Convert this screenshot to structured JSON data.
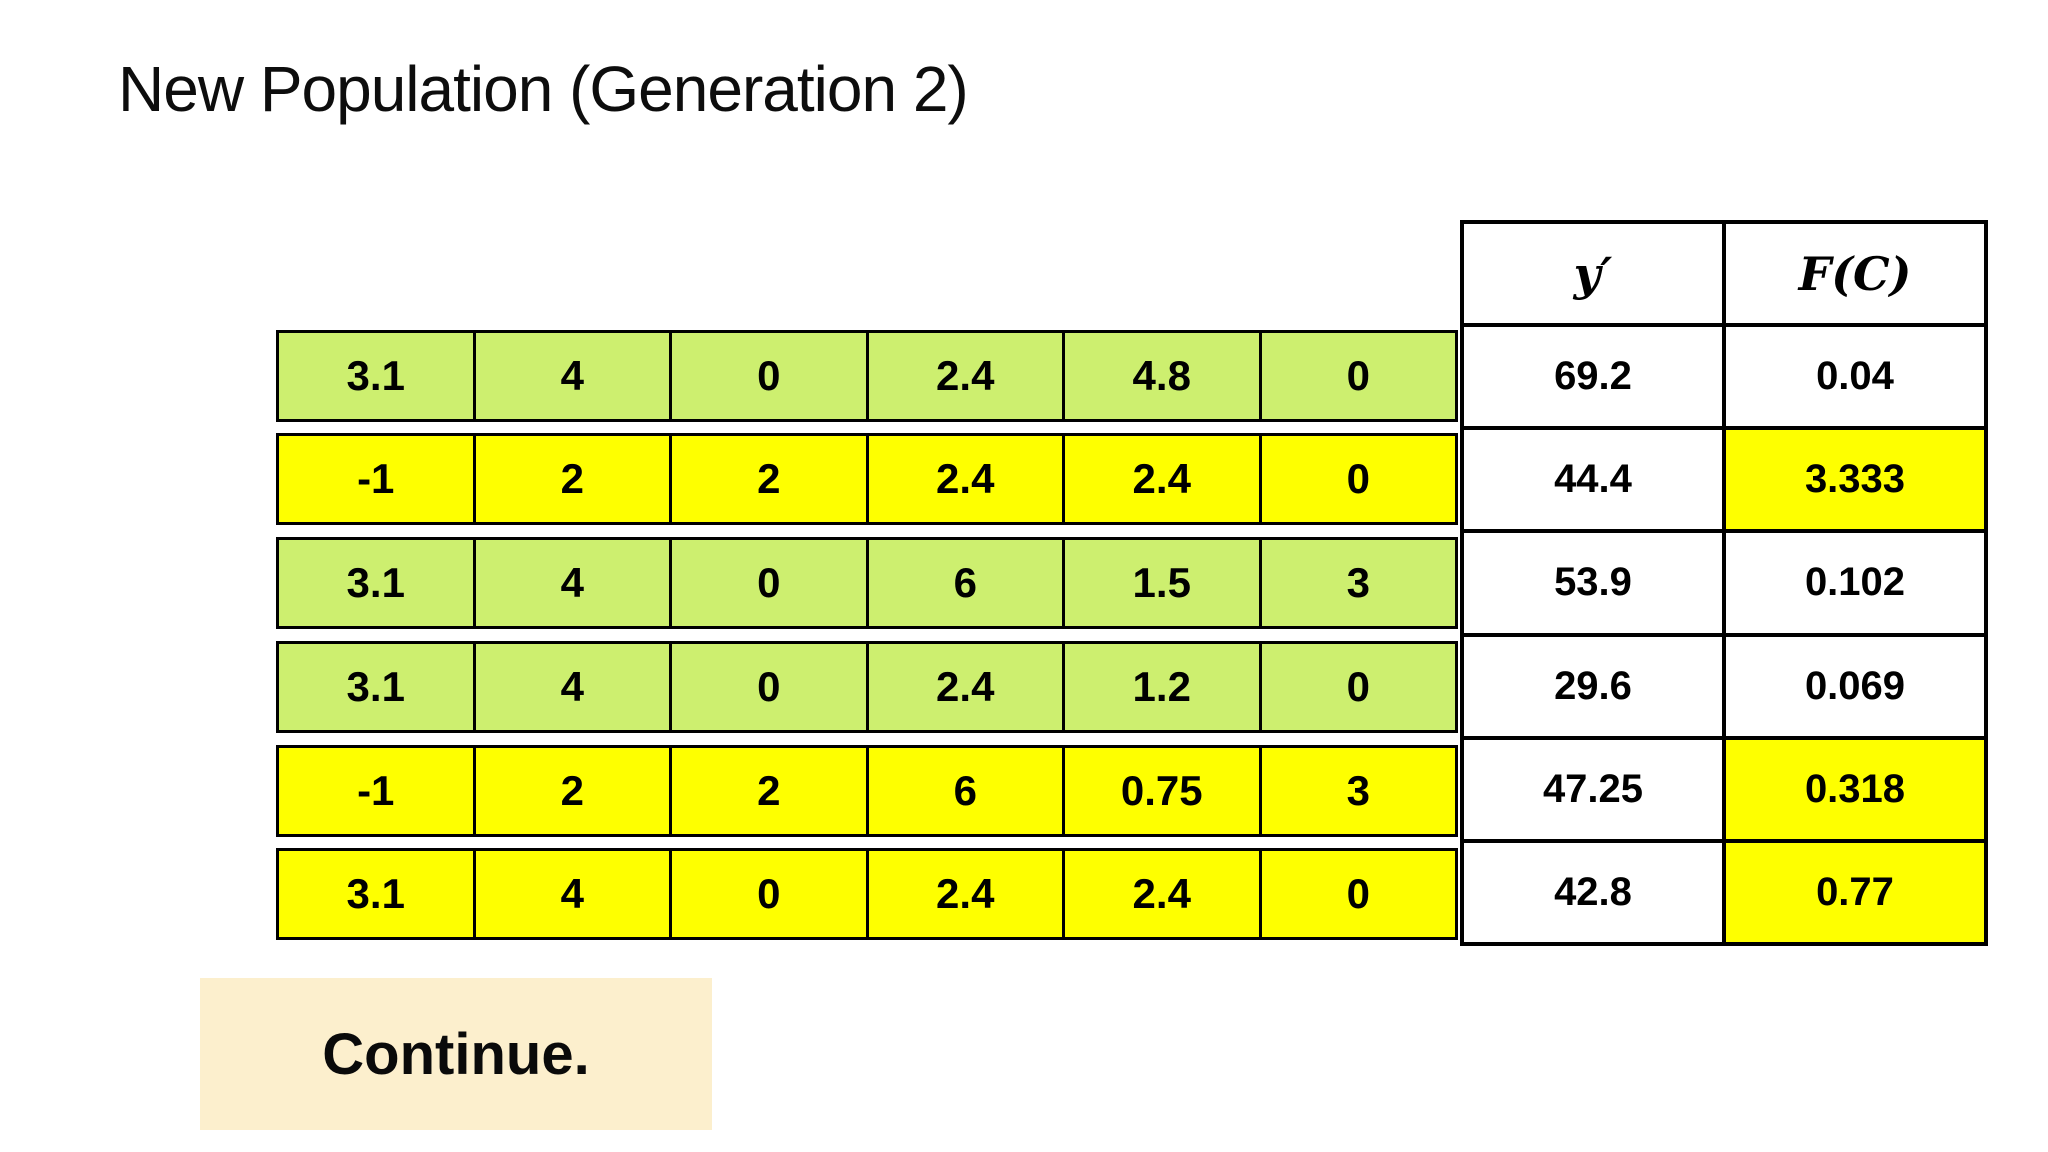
{
  "title": "New Population (Generation 2)",
  "colors": {
    "row_green": "#cdef6f",
    "row_yellow": "#feff00",
    "fitness_highlight": "#feff00",
    "continue_bg": "#fcefcd",
    "border": "#000000",
    "background": "#ffffff"
  },
  "population_table": {
    "rows": [
      {
        "color": "green",
        "genes": [
          "3.1",
          "4",
          "0",
          "2.4",
          "4.8",
          "0"
        ]
      },
      {
        "color": "yellow",
        "genes": [
          "-1",
          "2",
          "2",
          "2.4",
          "2.4",
          "0"
        ]
      },
      {
        "color": "green",
        "genes": [
          "3.1",
          "4",
          "0",
          "6",
          "1.5",
          "3"
        ]
      },
      {
        "color": "green",
        "genes": [
          "3.1",
          "4",
          "0",
          "2.4",
          "1.2",
          "0"
        ]
      },
      {
        "color": "yellow",
        "genes": [
          "-1",
          "2",
          "2",
          "6",
          "0.75",
          "3"
        ]
      },
      {
        "color": "yellow",
        "genes": [
          "3.1",
          "4",
          "0",
          "2.4",
          "2.4",
          "0"
        ]
      }
    ]
  },
  "results_table": {
    "headers": {
      "y_prime": "y′",
      "fitness": "F(C)"
    },
    "rows": [
      {
        "y_prime": "69.2",
        "fitness": "0.04",
        "fitness_highlighted": false
      },
      {
        "y_prime": "44.4",
        "fitness": "3.333",
        "fitness_highlighted": true
      },
      {
        "y_prime": "53.9",
        "fitness": "0.102",
        "fitness_highlighted": false
      },
      {
        "y_prime": "29.6",
        "fitness": "0.069",
        "fitness_highlighted": false
      },
      {
        "y_prime": "47.25",
        "fitness": "0.318",
        "fitness_highlighted": true
      },
      {
        "y_prime": "42.8",
        "fitness": "0.77",
        "fitness_highlighted": true
      }
    ]
  },
  "continue_box": {
    "label": "Continue."
  }
}
